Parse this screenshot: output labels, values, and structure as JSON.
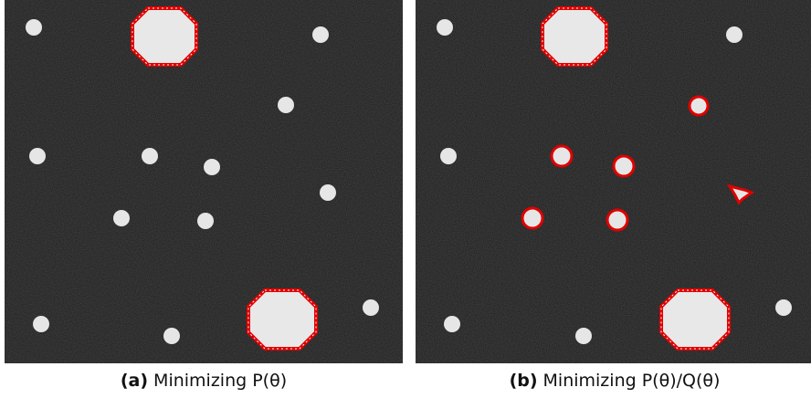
{
  "figure": {
    "panels": [
      {
        "id": "a",
        "label": "(a)",
        "caption": "Minimizing P(θ)",
        "background_color": "#1e1e1e",
        "blob_color": "#e6e6e6",
        "contour_color": "#e00000",
        "segmented_objects": [
          "large-octagon-top",
          "large-octagon-bottom"
        ]
      },
      {
        "id": "b",
        "label": "(b)",
        "caption": "Minimizing P(θ)/Q(θ)",
        "background_color": "#1e1e1e",
        "blob_color": "#e6e6e6",
        "contour_color": "#e00000",
        "segmented_objects": [
          "large-octagon-top",
          "large-octagon-bottom",
          "small-blob-1",
          "small-blob-2",
          "small-blob-3",
          "small-blob-4",
          "small-blob-5",
          "small-blob-6"
        ]
      }
    ]
  }
}
